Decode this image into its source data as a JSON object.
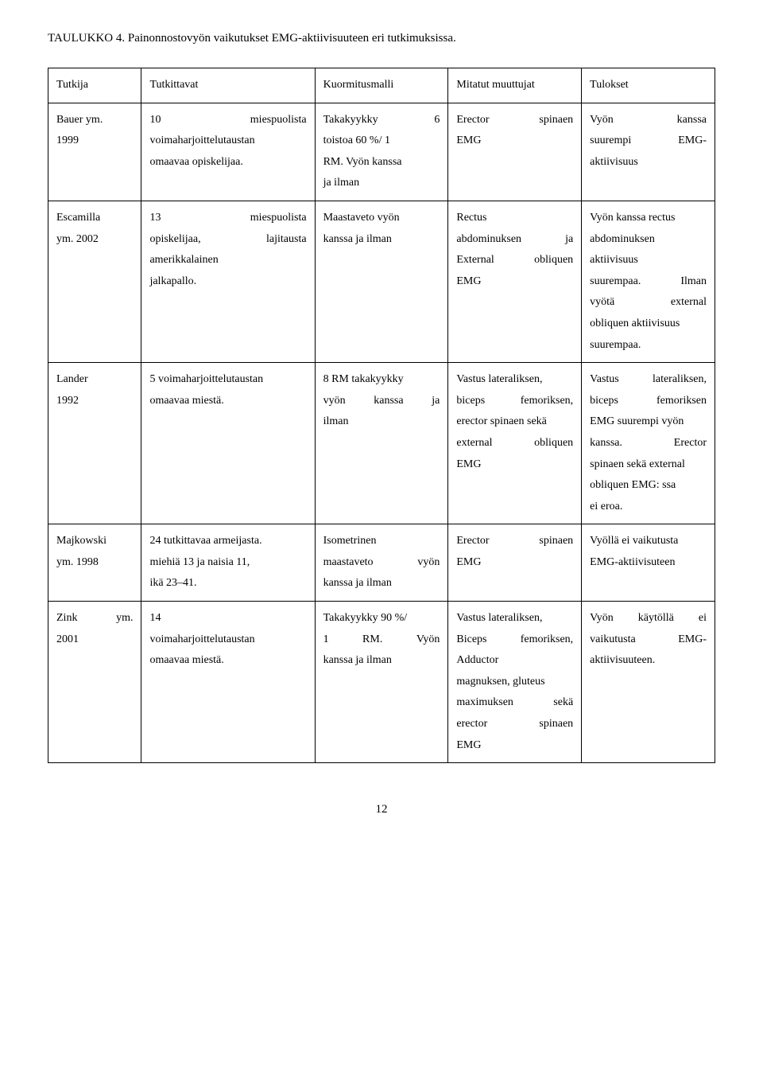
{
  "caption": "TAULUKKO 4. Painonnostovyön vaikutukset EMG-aktiivisuuteen eri tutkimuksissa.",
  "headers": {
    "c0": "Tutkija",
    "c1": "Tutkittavat",
    "c2": "Kuormitusmalli",
    "c3": "Mitatut muuttujat",
    "c4": "Tulokset"
  },
  "rows": {
    "r0": {
      "c0a": "Bauer ym.",
      "c0b": "1999",
      "c1a_l": "10",
      "c1a_r": "miespuolista",
      "c1b": "voimaharjoittelutaustan",
      "c1c": "omaavaa opiskelijaa.",
      "c2a_l": "Takakyykky",
      "c2a_r": "6",
      "c2b": "toistoa 60 %/ 1",
      "c2c": "RM. Vyön kanssa",
      "c2d": "ja ilman",
      "c3a_l": "Erector",
      "c3a_r": "spinaen",
      "c3b": "EMG",
      "c4a_l": "Vyön",
      "c4a_r": "kanssa",
      "c4b_l": "suurempi",
      "c4b_r": "EMG-",
      "c4c": "aktiivisuus"
    },
    "r1": {
      "c0a": "Escamilla",
      "c0b": "ym. 2002",
      "c1a_l": "13",
      "c1a_r": "miespuolista",
      "c1b_l": "opiskelijaa,",
      "c1b_r": "lajitausta",
      "c1c": "amerikkalainen",
      "c1d": "jalkapallo.",
      "c2a": "Maastaveto vyön",
      "c2b": "kanssa ja ilman",
      "c3a": "Rectus",
      "c3b_l": "abdominuksen",
      "c3b_r": "ja",
      "c3c_l": "External",
      "c3c_r": "obliquen",
      "c3d": "EMG",
      "c4a": "Vyön kanssa rectus",
      "c4b": "abdominuksen",
      "c4c": "aktiivisuus",
      "c4d_l": "suurempaa.",
      "c4d_r": "Ilman",
      "c4e_l": "vyötä",
      "c4e_r": "external",
      "c4f": "obliquen aktiivisuus",
      "c4g": "suurempaa."
    },
    "r2": {
      "c0a": "Lander",
      "c0b": "1992",
      "c1a": "5 voimaharjoittelutaustan",
      "c1b": "omaavaa miestä.",
      "c2a": "8 RM takakyykky",
      "c2b_l": "vyön",
      "c2b_m": "kanssa",
      "c2b_r": "ja",
      "c2c": "ilman",
      "c3a": "Vastus lateraliksen,",
      "c3b_l": "biceps",
      "c3b_r": "femoriksen,",
      "c3c": "erector spinaen sekä",
      "c3d_l": "external",
      "c3d_r": "obliquen",
      "c3e": "EMG",
      "c4a_l": "Vastus",
      "c4a_r": "lateraliksen,",
      "c4b_l": "biceps",
      "c4b_r": "femoriksen",
      "c4c": "EMG suurempi vyön",
      "c4d_l": "kanssa.",
      "c4d_r": "Erector",
      "c4e": "spinaen sekä external",
      "c4f": "obliquen EMG: ssa",
      "c4g": "ei eroa."
    },
    "r3": {
      "c0a": "Majkowski",
      "c0b": "ym. 1998",
      "c1a": "24 tutkittavaa armeijasta.",
      "c1b": "miehiä 13 ja naisia 11,",
      "c1c": "ikä 23–41.",
      "c2a": "Isometrinen",
      "c2b_l": "maastaveto",
      "c2b_r": "vyön",
      "c2c": "kanssa ja ilman",
      "c3a_l": "Erector",
      "c3a_r": "spinaen",
      "c3b": "EMG",
      "c4a": "Vyöllä ei vaikutusta",
      "c4b": "EMG-aktiivisuteen"
    },
    "r4": {
      "c0a_l": "Zink",
      "c0a_r": "ym.",
      "c0b": "2001",
      "c1a": "14",
      "c1b": "voimaharjoittelutaustan",
      "c1c": "omaavaa miestä.",
      "c2a": "Takakyykky 90 %/",
      "c2b_l": "1",
      "c2b_m": "RM.",
      "c2b_r": "Vyön",
      "c2c": "kanssa ja ilman",
      "c3a": "Vastus lateraliksen,",
      "c3b_l": "Biceps",
      "c3b_r": "femoriksen,",
      "c3c": "Adductor",
      "c3d": "magnuksen, gluteus",
      "c3e_l": "maximuksen",
      "c3e_r": "sekä",
      "c3f_l": "erector",
      "c3f_r": "spinaen",
      "c3g": "EMG",
      "c4a_l": "Vyön",
      "c4a_m": "käytöllä",
      "c4a_r": "ei",
      "c4b_l": "vaikutusta",
      "c4b_r": "EMG-",
      "c4c": "aktiivisuuteen."
    }
  },
  "pageNumber": "12"
}
